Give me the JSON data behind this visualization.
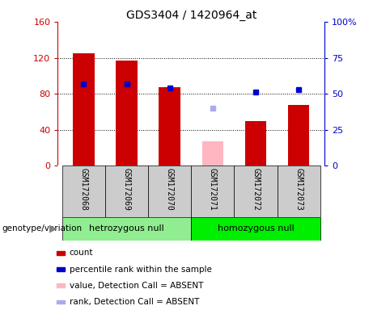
{
  "title": "GDS3404 / 1420964_at",
  "samples": [
    "GSM172068",
    "GSM172069",
    "GSM172070",
    "GSM172071",
    "GSM172072",
    "GSM172073"
  ],
  "red_bar_values": [
    125,
    117,
    87,
    0,
    50,
    68
  ],
  "pink_bar_values": [
    0,
    0,
    0,
    27,
    0,
    0
  ],
  "blue_square_values": [
    57,
    57,
    54,
    0,
    51,
    53
  ],
  "light_blue_square_values": [
    0,
    0,
    0,
    40,
    0,
    0
  ],
  "genotype_groups": [
    {
      "label": "hetrozygous null",
      "samples": [
        0,
        1,
        2
      ],
      "color": "#90EE90"
    },
    {
      "label": "homozygous null",
      "samples": [
        3,
        4,
        5
      ],
      "color": "#00EE00"
    }
  ],
  "left_ylim": [
    0,
    160
  ],
  "right_ylim": [
    0,
    100
  ],
  "left_yticks": [
    0,
    40,
    80,
    120,
    160
  ],
  "right_yticks": [
    0,
    25,
    50,
    75,
    100
  ],
  "right_yticklabels": [
    "0",
    "25",
    "50",
    "75",
    "100%"
  ],
  "left_yticklabels": [
    "0",
    "40",
    "80",
    "120",
    "160"
  ],
  "left_tick_color": "#CC0000",
  "right_tick_color": "#0000CC",
  "bar_color": "#CC0000",
  "pink_bar_color": "#FFB6C1",
  "blue_square_color": "#0000CC",
  "light_blue_square_color": "#AAAAEE",
  "plot_bg_color": "#FFFFFF",
  "sample_bg_color": "#CCCCCC",
  "genotype_label": "genotype/variation",
  "legend_items": [
    {
      "color": "#CC0000",
      "label": "count"
    },
    {
      "color": "#0000CC",
      "label": "percentile rank within the sample"
    },
    {
      "color": "#FFB6C1",
      "label": "value, Detection Call = ABSENT"
    },
    {
      "color": "#AAAAEE",
      "label": "rank, Detection Call = ABSENT"
    }
  ],
  "bar_width": 0.5
}
